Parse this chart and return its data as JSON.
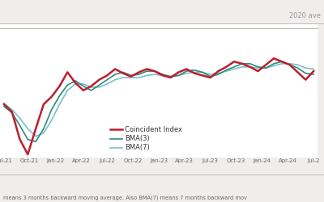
{
  "title_annotation": "2020 ave",
  "background_color": "#f0eeec",
  "plot_bg_color": "#ffffff",
  "x_labels": [
    "Jul-21",
    "Oct-21",
    "Jan-22",
    "Apr-22",
    "Jul-22",
    "Oct-22",
    "Jan-23",
    "Apr-23",
    "Jul-23",
    "Oct-23",
    "Jan-24",
    "Apr-24",
    "Jul-2"
  ],
  "footer_text": "means 3 months backward moving average. Also BMA(7) means 7 months backward mov",
  "coincident_color": "#be1e2d",
  "bma3_color": "#2e8b7a",
  "bma7_color": "#7bbfc8",
  "coincident_lw": 1.8,
  "bma3_lw": 1.2,
  "bma7_lw": 1.2,
  "legend_labels": [
    "Coincident Index",
    "BMA(3)",
    "BMA(7)"
  ],
  "ylim": [
    95.5,
    108.0
  ],
  "coincident_y": [
    100.5,
    99.8,
    97.2,
    95.8,
    98.2,
    100.5,
    101.2,
    102.2,
    103.5,
    102.5,
    101.8,
    102.2,
    102.8,
    103.2,
    103.8,
    103.4,
    103.1,
    103.5,
    103.8,
    103.6,
    103.2,
    103.0,
    103.5,
    103.8,
    103.4,
    103.2,
    103.0,
    103.6,
    104.0,
    104.5,
    104.3,
    104.0,
    103.6,
    104.2,
    104.8,
    104.5,
    104.2,
    103.5,
    102.8,
    103.6
  ],
  "bma3_y": [
    100.3,
    99.7,
    98.5,
    97.2,
    97.0,
    98.2,
    100.0,
    101.3,
    102.3,
    102.7,
    102.2,
    101.8,
    102.3,
    102.8,
    103.3,
    103.5,
    103.2,
    103.3,
    103.6,
    103.6,
    103.3,
    103.1,
    103.2,
    103.6,
    103.7,
    103.5,
    103.1,
    103.3,
    103.7,
    104.0,
    104.3,
    104.3,
    104.0,
    103.9,
    104.3,
    104.5,
    104.2,
    103.9,
    103.4,
    103.3
  ],
  "bma7_y": [
    100.6,
    100.0,
    99.2,
    98.2,
    97.5,
    97.8,
    99.0,
    100.5,
    101.8,
    102.4,
    102.4,
    102.1,
    102.1,
    102.4,
    102.8,
    103.0,
    103.0,
    103.0,
    103.2,
    103.3,
    103.2,
    103.1,
    103.2,
    103.4,
    103.5,
    103.5,
    103.3,
    103.4,
    103.6,
    103.8,
    104.0,
    104.0,
    103.9,
    103.9,
    104.1,
    104.3,
    104.3,
    104.2,
    103.9,
    103.8
  ]
}
